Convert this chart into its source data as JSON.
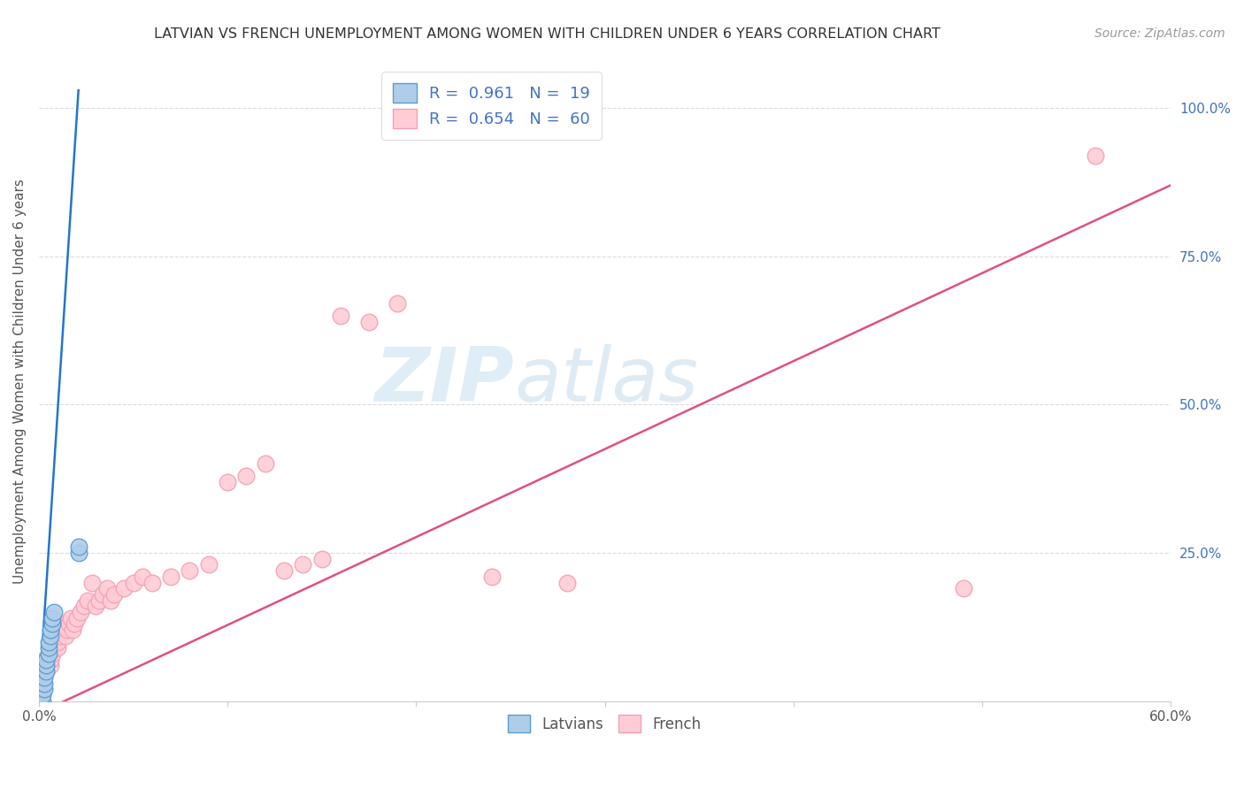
{
  "title": "LATVIAN VS FRENCH UNEMPLOYMENT AMONG WOMEN WITH CHILDREN UNDER 6 YEARS CORRELATION CHART",
  "source": "Source: ZipAtlas.com",
  "ylabel": "Unemployment Among Women with Children Under 6 years",
  "xlim": [
    0.0,
    0.6
  ],
  "ylim": [
    0.0,
    1.08
  ],
  "xticks": [
    0.0,
    0.1,
    0.2,
    0.3,
    0.4,
    0.5,
    0.6
  ],
  "xtick_labels": [
    "0.0%",
    "",
    "",
    "",
    "",
    "",
    "60.0%"
  ],
  "yticks": [
    0.0,
    0.25,
    0.5,
    0.75,
    1.0
  ],
  "ytick_labels": [
    "",
    "25.0%",
    "50.0%",
    "75.0%",
    "100.0%"
  ],
  "latvian_color": "#aecde8",
  "latvian_edge": "#5b9bd5",
  "french_color": "#ffccd5",
  "french_edge": "#f4a0b5",
  "latvian_line_color": "#2176cc",
  "french_line_color": "#e05080",
  "legend_latvian_label": "R =  0.961   N =  19",
  "legend_french_label": "R =  0.654   N =  60",
  "watermark_zip": "ZIP",
  "watermark_atlas": "atlas",
  "latvians_label": "Latvians",
  "french_label": "French",
  "latvian_line_x": [
    0.0,
    0.021
  ],
  "latvian_line_y": [
    0.0,
    1.03
  ],
  "french_line_x": [
    0.0,
    0.6
  ],
  "french_line_y": [
    -0.02,
    0.87
  ],
  "latvian_x": [
    0.001,
    0.002,
    0.002,
    0.003,
    0.003,
    0.003,
    0.004,
    0.004,
    0.004,
    0.005,
    0.005,
    0.005,
    0.006,
    0.006,
    0.007,
    0.007,
    0.008,
    0.021,
    0.021
  ],
  "latvian_y": [
    0.0,
    0.0,
    0.01,
    0.02,
    0.03,
    0.04,
    0.05,
    0.06,
    0.07,
    0.08,
    0.09,
    0.1,
    0.11,
    0.12,
    0.13,
    0.14,
    0.15,
    0.25,
    0.26
  ],
  "french_x": [
    0.001,
    0.001,
    0.002,
    0.002,
    0.003,
    0.003,
    0.004,
    0.004,
    0.005,
    0.005,
    0.006,
    0.006,
    0.007,
    0.007,
    0.008,
    0.008,
    0.009,
    0.009,
    0.01,
    0.01,
    0.011,
    0.012,
    0.013,
    0.014,
    0.015,
    0.016,
    0.017,
    0.018,
    0.019,
    0.02,
    0.022,
    0.024,
    0.026,
    0.028,
    0.03,
    0.032,
    0.034,
    0.036,
    0.038,
    0.04,
    0.045,
    0.05,
    0.055,
    0.06,
    0.07,
    0.08,
    0.09,
    0.1,
    0.11,
    0.12,
    0.13,
    0.14,
    0.15,
    0.16,
    0.175,
    0.19,
    0.24,
    0.28,
    0.49,
    0.56
  ],
  "french_y": [
    0.02,
    0.03,
    0.04,
    0.05,
    0.06,
    0.07,
    0.05,
    0.06,
    0.07,
    0.08,
    0.06,
    0.07,
    0.08,
    0.09,
    0.1,
    0.11,
    0.1,
    0.11,
    0.09,
    0.1,
    0.11,
    0.12,
    0.13,
    0.11,
    0.12,
    0.13,
    0.14,
    0.12,
    0.13,
    0.14,
    0.15,
    0.16,
    0.17,
    0.2,
    0.16,
    0.17,
    0.18,
    0.19,
    0.17,
    0.18,
    0.19,
    0.2,
    0.21,
    0.2,
    0.21,
    0.22,
    0.23,
    0.37,
    0.38,
    0.4,
    0.22,
    0.23,
    0.24,
    0.65,
    0.64,
    0.67,
    0.21,
    0.2,
    0.19,
    0.92
  ]
}
